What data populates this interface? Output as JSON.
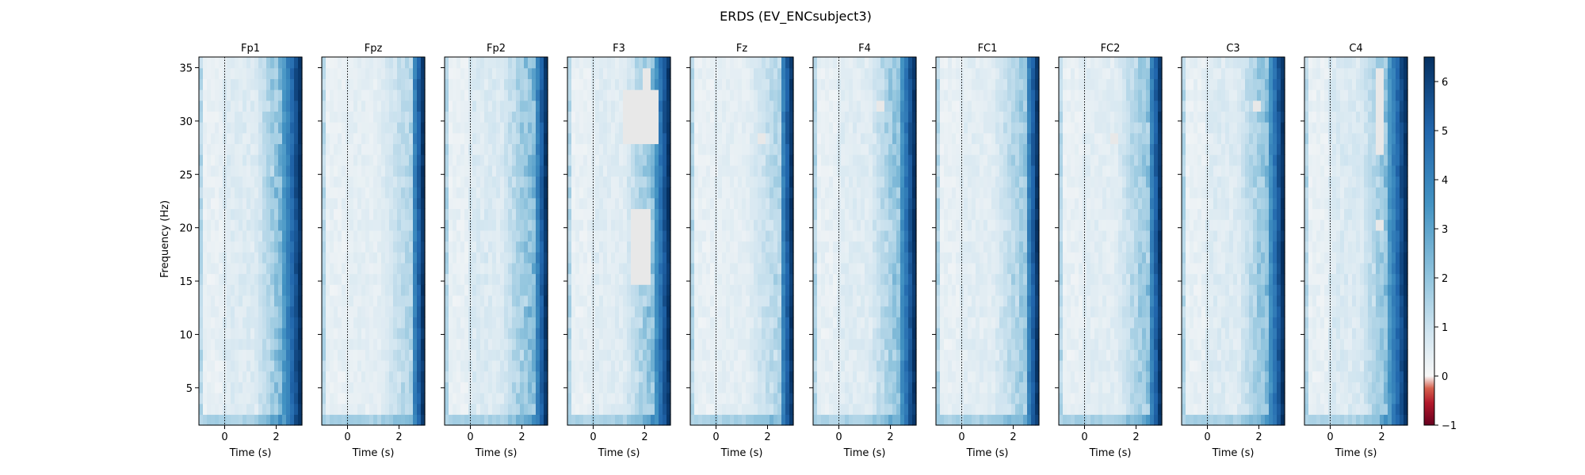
{
  "figure": {
    "title": "ERDS (EV_ENCsubject3)"
  },
  "chart_data": {
    "type": "heatmap",
    "title": "ERDS (EV_ENCsubject3)",
    "shared_xlabel": "Time (s)",
    "shared_ylabel": "Frequency (Hz)",
    "xlim": [
      -1,
      3
    ],
    "ylim": [
      1.5,
      36
    ],
    "x_ticks": [
      0,
      2
    ],
    "y_ticks": [
      5,
      10,
      15,
      20,
      25,
      30,
      35
    ],
    "event_marker_time": 0,
    "colorbar": {
      "range": [
        -1,
        6.5
      ],
      "ticks": [
        -1,
        0,
        1,
        2,
        3,
        4,
        5,
        6
      ],
      "colormap": "RdBu (diverging, centered at 0)",
      "color_low": "#67001f",
      "color_mid": "#f7f7f7",
      "color_high": "#053061"
    },
    "panels": [
      {
        "channel": "Fp1",
        "edge_onset": 2.3,
        "background": 0.55,
        "late_band": 2.8,
        "masked": []
      },
      {
        "channel": "Fpz",
        "edge_onset": 2.5,
        "background": 0.4,
        "late_band": 1.5,
        "masked": []
      },
      {
        "channel": "Fp2",
        "edge_onset": 2.5,
        "background": 0.6,
        "late_band": 2.5,
        "masked": []
      },
      {
        "channel": "F3",
        "edge_onset": 2.4,
        "background": 0.5,
        "late_band": 2.5,
        "masked": [
          {
            "t": [
              1.2,
              2.5
            ],
            "f": [
              28,
              33
            ]
          },
          {
            "t": [
              1.5,
              2.3
            ],
            "f": [
              15,
              22
            ]
          },
          {
            "t": [
              2.0,
              2.3
            ],
            "f": [
              33,
              35
            ]
          }
        ]
      },
      {
        "channel": "Fz",
        "edge_onset": 2.5,
        "background": 0.4,
        "late_band": 1.5,
        "masked": [
          {
            "t": [
              1.6,
              1.9
            ],
            "f": [
              28,
              29
            ]
          }
        ]
      },
      {
        "channel": "F4",
        "edge_onset": 2.4,
        "background": 0.5,
        "late_band": 2.5,
        "masked": [
          {
            "t": [
              1.4,
              1.8
            ],
            "f": [
              31,
              32
            ]
          }
        ]
      },
      {
        "channel": "FC1",
        "edge_onset": 2.5,
        "background": 0.45,
        "late_band": 2.0,
        "masked": []
      },
      {
        "channel": "FC2",
        "edge_onset": 2.5,
        "background": 0.45,
        "late_band": 2.2,
        "masked": [
          {
            "t": [
              1.0,
              1.3
            ],
            "f": [
              28,
              29
            ]
          }
        ]
      },
      {
        "channel": "C3",
        "edge_onset": 2.4,
        "background": 0.55,
        "late_band": 2.5,
        "masked": [
          {
            "t": [
              1.8,
              2.0
            ],
            "f": [
              31,
              32
            ]
          }
        ]
      },
      {
        "channel": "C4",
        "edge_onset": 2.3,
        "background": 0.6,
        "late_band": 2.5,
        "masked": [
          {
            "t": [
              1.7,
              2.1
            ],
            "f": [
              27,
              35
            ]
          },
          {
            "t": [
              1.8,
              2.0
            ],
            "f": [
              20,
              21
            ]
          }
        ]
      }
    ]
  }
}
